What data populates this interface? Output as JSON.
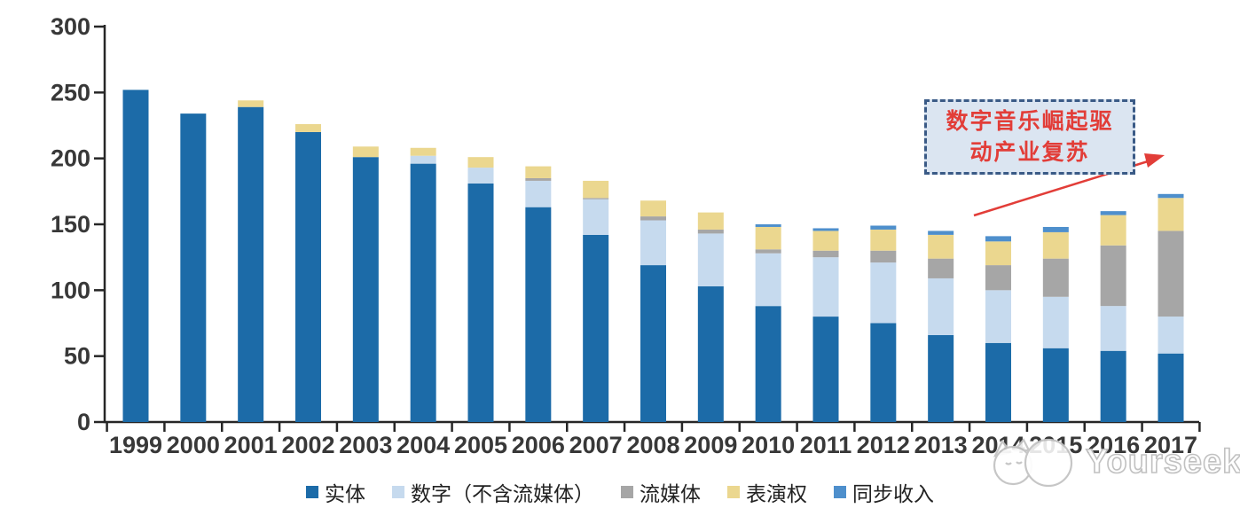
{
  "chart_data": {
    "type": "bar",
    "stacked": true,
    "title": "",
    "xlabel": "",
    "ylabel": "",
    "grid": false,
    "legend_position": "bottom",
    "ylim": [
      0,
      300
    ],
    "yticks": [
      0,
      50,
      100,
      150,
      200,
      250,
      300
    ],
    "categories": [
      "1999",
      "2000",
      "2001",
      "2002",
      "2003",
      "2004",
      "2005",
      "2006",
      "2007",
      "2008",
      "2009",
      "2010",
      "2011",
      "2012",
      "2013",
      "2014",
      "2015",
      "2016",
      "2017"
    ],
    "series": [
      {
        "name": "实体",
        "color": "#1c6ba8",
        "values": [
          252,
          234,
          239,
          220,
          201,
          196,
          181,
          163,
          142,
          119,
          103,
          88,
          80,
          75,
          66,
          60,
          56,
          54,
          52
        ]
      },
      {
        "name": "数字（不含流媒体）",
        "color": "#c6daee",
        "values": [
          0,
          0,
          0,
          0,
          0,
          6,
          12,
          20,
          27,
          34,
          40,
          40,
          45,
          46,
          43,
          40,
          39,
          34,
          28
        ]
      },
      {
        "name": "流媒体",
        "color": "#a6a6a6",
        "values": [
          0,
          0,
          0,
          0,
          0,
          0,
          0,
          2,
          1,
          3,
          3,
          3,
          5,
          9,
          15,
          19,
          29,
          46,
          65
        ]
      },
      {
        "name": "表演权",
        "color": "#ebd78f",
        "values": [
          0,
          0,
          5,
          6,
          8,
          6,
          8,
          9,
          13,
          12,
          13,
          17,
          15,
          16,
          18,
          18,
          20,
          23,
          25
        ]
      },
      {
        "name": "同步收入",
        "color": "#4e8fcc",
        "values": [
          0,
          0,
          0,
          0,
          0,
          0,
          0,
          0,
          0,
          0,
          0,
          2,
          2,
          3,
          3,
          4,
          4,
          3,
          3
        ]
      }
    ]
  },
  "annotation": {
    "lines": [
      "数字音乐崛起驱",
      "动产业复苏"
    ],
    "text_color": "#e23d38",
    "box_fill": "#dbe5f1",
    "box_border_color": "#3a5a86",
    "arrow_color": "#e23d38"
  },
  "watermark": {
    "text": "Yourseeker"
  },
  "axis": {
    "line_color": "#262626",
    "tick_label_color": "#383838"
  }
}
